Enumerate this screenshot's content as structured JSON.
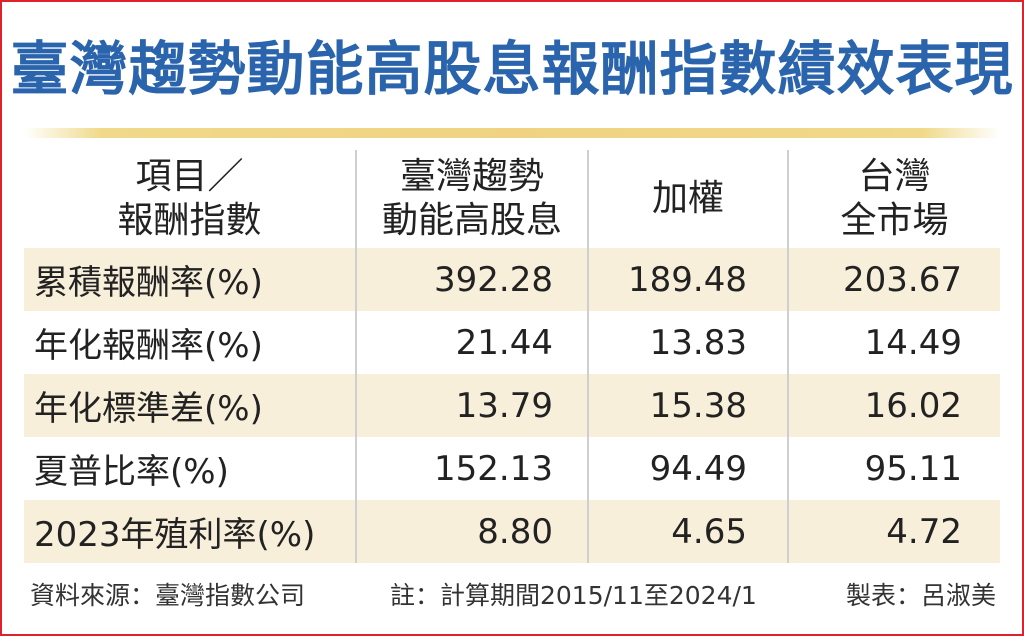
{
  "title": "臺灣趨勢動能高股息報酬指數績效表現",
  "header": {
    "col0": [
      "項目／",
      "報酬指數"
    ],
    "col1": [
      "臺灣趨勢",
      "動能高股息"
    ],
    "col2": [
      "加權"
    ],
    "col3": [
      "台灣",
      "全市場"
    ]
  },
  "rows": [
    {
      "label": "累積報酬率(%)",
      "values": [
        "392.28",
        "189.48",
        "203.67"
      ]
    },
    {
      "label": "年化報酬率(%)",
      "values": [
        "21.44",
        "13.83",
        "14.49"
      ]
    },
    {
      "label": "年化標準差(%)",
      "values": [
        "13.79",
        "15.38",
        "16.02"
      ]
    },
    {
      "label": "夏普比率(%)",
      "values": [
        "152.13",
        "94.49",
        "95.11"
      ]
    },
    {
      "label": "2023年殖利率(%)",
      "values": [
        "8.80",
        "4.65",
        "4.72"
      ]
    }
  ],
  "footer": {
    "source": "資料來源：臺灣指數公司",
    "note": "註：計算期間2015/11至2024/1",
    "maker": "製表：呂淑美"
  },
  "colors": {
    "title": "#2a64ad",
    "border": "#e0202a",
    "row_shade": "#f8efdb",
    "title_bar": "#efd382"
  },
  "chart_data": {
    "type": "table",
    "title": "臺灣趨勢動能高股息報酬指數績效表現",
    "columns": [
      "項目／報酬指數",
      "臺灣趨勢動能高股息",
      "加權",
      "台灣全市場"
    ],
    "rows": [
      [
        "累積報酬率(%)",
        392.28,
        189.48,
        203.67
      ],
      [
        "年化報酬率(%)",
        21.44,
        13.83,
        14.49
      ],
      [
        "年化標準差(%)",
        13.79,
        15.38,
        16.02
      ],
      [
        "夏普比率(%)",
        152.13,
        94.49,
        95.11
      ],
      [
        "2023年殖利率(%)",
        8.8,
        4.65,
        4.72
      ]
    ]
  }
}
